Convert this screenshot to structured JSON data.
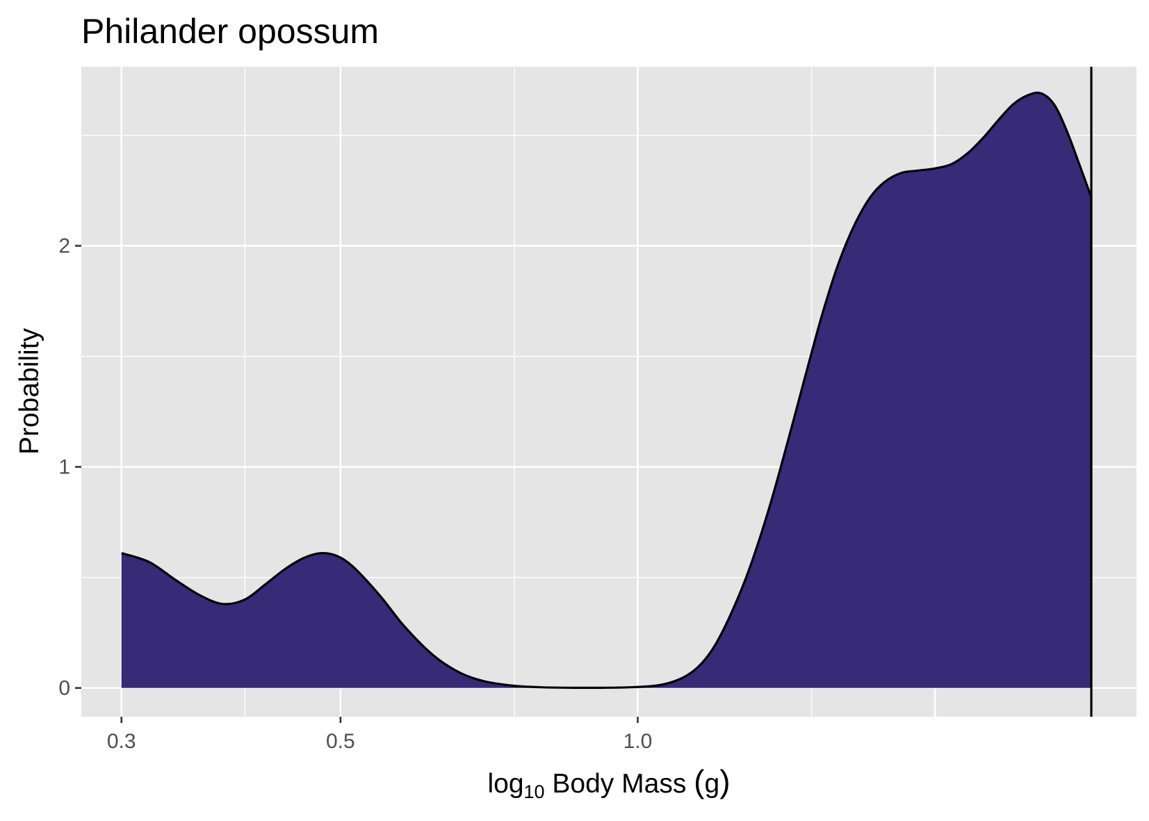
{
  "chart_data": {
    "type": "area",
    "title": "Philander opossum",
    "xlabel": {
      "prefix": "log",
      "subscript": "10",
      "text": " Body Mass ",
      "unit_open": "(",
      "unit": "g",
      "unit_close": ")"
    },
    "ylabel": "Probability",
    "x_scale": "log",
    "x_ticks": [
      0.3,
      0.5,
      1.0
    ],
    "x_tick_labels": [
      "0.3",
      "0.5",
      "1.0"
    ],
    "x_minor_breaks": [
      0.4,
      0.75,
      1.5,
      2.0
    ],
    "x_major_gridlines": [
      0.3,
      0.5,
      1.0,
      2.0
    ],
    "y_ticks": [
      0,
      1,
      2
    ],
    "y_tick_labels": [
      "0",
      "1",
      "2"
    ],
    "xlim": [
      0.2732,
      3.2
    ],
    "ylim": [
      -0.13,
      2.81
    ],
    "grid": true,
    "reference_line_x": 2.88,
    "fill_color": "#372A76",
    "line_color": "#000000",
    "panel_color": "#E5E5E5",
    "series": [
      {
        "x": [
          0.3,
          0.32,
          0.34,
          0.36,
          0.38,
          0.4,
          0.42,
          0.44,
          0.46,
          0.48,
          0.5,
          0.52,
          0.55,
          0.58,
          0.62,
          0.66,
          0.7,
          0.75,
          0.8,
          0.86,
          0.92,
          0.98,
          1.04,
          1.08,
          1.12,
          1.16,
          1.2,
          1.25,
          1.3,
          1.36,
          1.42,
          1.48,
          1.54,
          1.6,
          1.66,
          1.72,
          1.78,
          1.85,
          1.92,
          2.0,
          2.08,
          2.16,
          2.24,
          2.32,
          2.4,
          2.48,
          2.56,
          2.64,
          2.72,
          2.8,
          2.88
        ],
        "y": [
          0.61,
          0.57,
          0.49,
          0.42,
          0.38,
          0.4,
          0.47,
          0.54,
          0.59,
          0.61,
          0.59,
          0.53,
          0.41,
          0.28,
          0.15,
          0.07,
          0.03,
          0.01,
          0.003,
          0.001,
          0.001,
          0.003,
          0.01,
          0.025,
          0.055,
          0.11,
          0.2,
          0.36,
          0.55,
          0.82,
          1.12,
          1.42,
          1.7,
          1.93,
          2.1,
          2.22,
          2.29,
          2.33,
          2.34,
          2.35,
          2.37,
          2.42,
          2.49,
          2.57,
          2.64,
          2.68,
          2.69,
          2.64,
          2.52,
          2.37,
          2.22
        ]
      }
    ]
  }
}
